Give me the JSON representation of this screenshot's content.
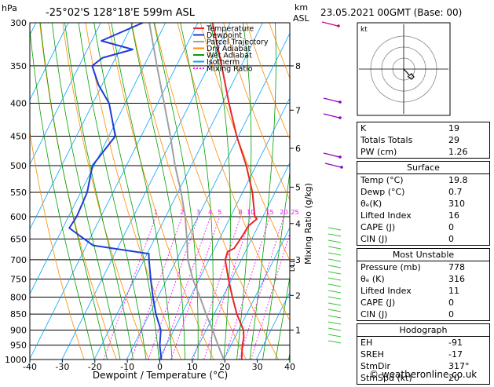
{
  "header": {
    "hpa_label": "hPa",
    "location": "-25°02'S  128°18'E  599m  ASL",
    "km_label": "km",
    "asl_label": "ASL",
    "datetime": "23.05.2021  00GMT  (Base: 00)"
  },
  "chart_data": {
    "type": "skew-t",
    "xlabel": "Dewpoint / Temperature (°C)",
    "ylabel": "Mixing Ratio (g/kg)",
    "x_ticks": [
      -40,
      -30,
      -20,
      -10,
      0,
      10,
      20,
      30,
      40
    ],
    "xlim": [
      -40,
      40
    ],
    "pressure_levels": [
      300,
      350,
      400,
      450,
      500,
      550,
      600,
      650,
      700,
      750,
      800,
      850,
      900,
      950,
      1000
    ],
    "km_ticks": [
      {
        "km": "8",
        "p": 350
      },
      {
        "km": "7",
        "p": 410
      },
      {
        "km": "6",
        "p": 470
      },
      {
        "km": "5",
        "p": 540
      },
      {
        "km": "4",
        "p": 615
      },
      {
        "km": "3",
        "p": 700
      },
      {
        "km": "2",
        "p": 795
      },
      {
        "km": "1",
        "p": 900
      }
    ],
    "lcl_label": "LCL",
    "lcl_p": 715,
    "mixing_ratio_labels": [
      "1",
      "2",
      "3",
      "4",
      "5",
      "8",
      "10",
      "15",
      "20",
      "25"
    ],
    "mixing_ratio_values": [
      1,
      2,
      3,
      4,
      5,
      8,
      10,
      15,
      20,
      25
    ],
    "legend": {
      "position": "top-right",
      "entries": [
        {
          "name": "Temperature",
          "color": "#e8262a"
        },
        {
          "name": "Dewpoint",
          "color": "#1e3cd8"
        },
        {
          "name": "Parcel Trajectory",
          "color": "#a0a0a0"
        },
        {
          "name": "Dry Adiabat",
          "color": "#ff8c00"
        },
        {
          "name": "Wet Adiabat",
          "color": "#00a000"
        },
        {
          "name": "Isotherm",
          "color": "#00a0ff"
        },
        {
          "name": "Mixing Ratio",
          "color": "#ff00ff"
        }
      ]
    },
    "temperature": [
      {
        "p": 1000,
        "t": 25.5
      },
      {
        "p": 950,
        "t": 23.5
      },
      {
        "p": 925,
        "t": 22.8
      },
      {
        "p": 900,
        "t": 21.5
      },
      {
        "p": 850,
        "t": 17.0
      },
      {
        "p": 800,
        "t": 13.0
      },
      {
        "p": 750,
        "t": 9.0
      },
      {
        "p": 700,
        "t": 5.0
      },
      {
        "p": 680,
        "t": 4.5
      },
      {
        "p": 672,
        "t": 6.0
      },
      {
        "p": 650,
        "t": 6.5
      },
      {
        "p": 620,
        "t": 7.0
      },
      {
        "p": 605,
        "t": 8.5
      },
      {
        "p": 600,
        "t": 7.5
      },
      {
        "p": 550,
        "t": 3.0
      },
      {
        "p": 500,
        "t": -3.0
      },
      {
        "p": 450,
        "t": -10.5
      },
      {
        "p": 400,
        "t": -18.0
      },
      {
        "p": 350,
        "t": -26.0
      },
      {
        "p": 300,
        "t": -35.5
      }
    ],
    "dewpoint": [
      {
        "p": 1000,
        "t": 0.7
      },
      {
        "p": 950,
        "t": -2.0
      },
      {
        "p": 900,
        "t": -4.0
      },
      {
        "p": 850,
        "t": -8.0
      },
      {
        "p": 800,
        "t": -11.5
      },
      {
        "p": 750,
        "t": -15.0
      },
      {
        "p": 700,
        "t": -18.5
      },
      {
        "p": 685,
        "t": -19.5
      },
      {
        "p": 665,
        "t": -38.0
      },
      {
        "p": 625,
        "t": -48.0
      },
      {
        "p": 600,
        "t": -47.5
      },
      {
        "p": 550,
        "t": -48.0
      },
      {
        "p": 500,
        "t": -50.5
      },
      {
        "p": 450,
        "t": -48.0
      },
      {
        "p": 400,
        "t": -55.0
      },
      {
        "p": 375,
        "t": -61.0
      },
      {
        "p": 350,
        "t": -66.0
      },
      {
        "p": 340,
        "t": -64.0
      },
      {
        "p": 330,
        "t": -56.0
      },
      {
        "p": 320,
        "t": -67.0
      },
      {
        "p": 300,
        "t": -57.0
      }
    ],
    "parcel": [
      {
        "p": 1000,
        "t": 20.0
      },
      {
        "p": 950,
        "t": 16.0
      },
      {
        "p": 900,
        "t": 12.0
      },
      {
        "p": 850,
        "t": 7.5
      },
      {
        "p": 800,
        "t": 3.0
      },
      {
        "p": 750,
        "t": -2.0
      },
      {
        "p": 700,
        "t": -6.5
      },
      {
        "p": 650,
        "t": -10.0
      },
      {
        "p": 600,
        "t": -14.0
      },
      {
        "p": 550,
        "t": -19.0
      },
      {
        "p": 500,
        "t": -25.0
      },
      {
        "p": 450,
        "t": -31.0
      },
      {
        "p": 400,
        "t": -38.0
      },
      {
        "p": 350,
        "t": -46.0
      },
      {
        "p": 300,
        "t": -55.0
      }
    ]
  },
  "hodograph": {
    "label": "kt"
  },
  "indices": {
    "k_label": "K",
    "k": "19",
    "tt_label": "Totals Totals",
    "tt": "29",
    "pw_label": "PW (cm)",
    "pw": "1.26"
  },
  "surface": {
    "title": "Surface",
    "temp_label": "Temp (°C)",
    "temp": "19.8",
    "dewp_label": "Dewp (°C)",
    "dewp": "0.7",
    "theta_label": "θₑ(K)",
    "theta": "310",
    "li_label": "Lifted Index",
    "li": "16",
    "cape_label": "CAPE (J)",
    "cape": "0",
    "cin_label": "CIN (J)",
    "cin": "0"
  },
  "most_unstable": {
    "title": "Most Unstable",
    "pres_label": "Pressure (mb)",
    "pres": "778",
    "theta_label": "θₑ (K)",
    "theta": "316",
    "li_label": "Lifted Index",
    "li": "11",
    "cape_label": "CAPE (J)",
    "cape": "0",
    "cin_label": "CIN (J)",
    "cin": "0"
  },
  "hodo_stats": {
    "title": "Hodograph",
    "eh_label": "EH",
    "eh": "-91",
    "sreh_label": "SREH",
    "sreh": "-17",
    "stmdir_label": "StmDir",
    "stmdir": "317°",
    "stmspd_label": "StmSpd (kt)",
    "stmspd": "20"
  },
  "footer": "© weatheronline.co.uk"
}
